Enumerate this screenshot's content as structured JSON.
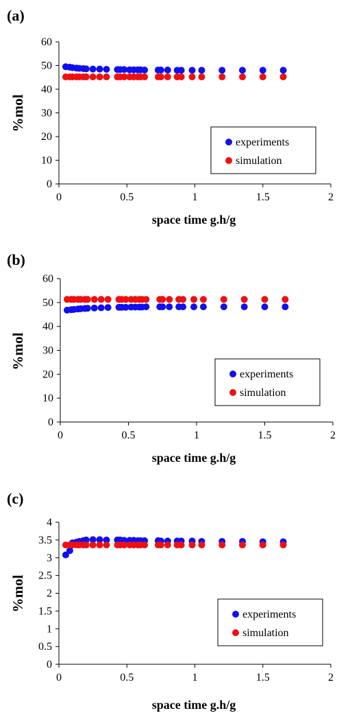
{
  "chart_data": [
    {
      "type": "scatter",
      "panel_label": "(a)",
      "xlabel": "space time g.h/g",
      "ylabel": "%mol",
      "xlim": [
        0,
        2
      ],
      "ylim": [
        0,
        60
      ],
      "xticks": [
        "0",
        "0.5",
        "1",
        "1.5",
        "2"
      ],
      "yticks": [
        "0",
        "10",
        "20",
        "30",
        "40",
        "50",
        "60"
      ],
      "legend_position": "lower-right",
      "series": [
        {
          "name": "experiments",
          "color": "#1010ee",
          "x": [
            0.05,
            0.08,
            0.1,
            0.13,
            0.15,
            0.18,
            0.2,
            0.25,
            0.3,
            0.35,
            0.43,
            0.45,
            0.48,
            0.52,
            0.55,
            0.58,
            0.6,
            0.63,
            0.73,
            0.75,
            0.8,
            0.87,
            0.9,
            0.98,
            1.05,
            1.2,
            1.35,
            1.5,
            1.65
          ],
          "y": [
            49.5,
            49.3,
            49.1,
            48.9,
            48.8,
            48.7,
            48.6,
            48.5,
            48.5,
            48.4,
            48.3,
            48.3,
            48.3,
            48.2,
            48.2,
            48.2,
            48.2,
            48.1,
            48.1,
            48.1,
            48.1,
            48.0,
            48.0,
            48.0,
            48.0,
            48.0,
            48.0,
            48.0,
            48.0
          ]
        },
        {
          "name": "simulation",
          "color": "#ee1010",
          "x": [
            0.05,
            0.08,
            0.1,
            0.13,
            0.15,
            0.18,
            0.2,
            0.25,
            0.3,
            0.35,
            0.43,
            0.45,
            0.48,
            0.52,
            0.55,
            0.58,
            0.6,
            0.63,
            0.73,
            0.75,
            0.8,
            0.87,
            0.9,
            0.98,
            1.05,
            1.2,
            1.35,
            1.5,
            1.65
          ],
          "y": [
            45.2,
            45.2,
            45.2,
            45.2,
            45.2,
            45.2,
            45.2,
            45.2,
            45.2,
            45.2,
            45.2,
            45.2,
            45.2,
            45.2,
            45.2,
            45.2,
            45.2,
            45.2,
            45.2,
            45.2,
            45.2,
            45.2,
            45.2,
            45.2,
            45.2,
            45.2,
            45.2,
            45.2,
            45.2
          ]
        }
      ]
    },
    {
      "type": "scatter",
      "panel_label": "(b)",
      "xlabel": "space time g.h/g",
      "ylabel": "%mol",
      "xlim": [
        0,
        2
      ],
      "ylim": [
        0,
        60
      ],
      "xticks": [
        "0",
        "0.5",
        "1",
        "1.5",
        "2"
      ],
      "yticks": [
        "0",
        "10",
        "20",
        "30",
        "40",
        "50",
        "60"
      ],
      "legend_position": "lower-right",
      "series": [
        {
          "name": "experiments",
          "color": "#1010ee",
          "x": [
            0.05,
            0.08,
            0.1,
            0.13,
            0.15,
            0.18,
            0.2,
            0.25,
            0.3,
            0.35,
            0.43,
            0.45,
            0.48,
            0.52,
            0.55,
            0.58,
            0.6,
            0.63,
            0.73,
            0.75,
            0.8,
            0.87,
            0.9,
            0.98,
            1.05,
            1.2,
            1.35,
            1.5,
            1.65
          ],
          "y": [
            46.8,
            47.0,
            47.1,
            47.3,
            47.4,
            47.5,
            47.6,
            47.7,
            47.8,
            47.9,
            48.0,
            48.0,
            48.0,
            48.1,
            48.1,
            48.1,
            48.1,
            48.2,
            48.2,
            48.2,
            48.2,
            48.2,
            48.2,
            48.2,
            48.2,
            48.2,
            48.2,
            48.2,
            48.2
          ]
        },
        {
          "name": "simulation",
          "color": "#ee1010",
          "x": [
            0.05,
            0.08,
            0.1,
            0.13,
            0.15,
            0.18,
            0.2,
            0.25,
            0.3,
            0.35,
            0.43,
            0.45,
            0.48,
            0.52,
            0.55,
            0.58,
            0.6,
            0.63,
            0.73,
            0.75,
            0.8,
            0.87,
            0.9,
            0.98,
            1.05,
            1.2,
            1.35,
            1.5,
            1.65
          ],
          "y": [
            51.3,
            51.3,
            51.3,
            51.3,
            51.3,
            51.3,
            51.3,
            51.3,
            51.3,
            51.3,
            51.3,
            51.3,
            51.3,
            51.3,
            51.3,
            51.3,
            51.3,
            51.3,
            51.3,
            51.3,
            51.3,
            51.3,
            51.3,
            51.3,
            51.3,
            51.3,
            51.3,
            51.3,
            51.3
          ]
        }
      ]
    },
    {
      "type": "scatter",
      "panel_label": "(c)",
      "xlabel": "space time g.h/g",
      "ylabel": "%mol",
      "xlim": [
        0,
        2
      ],
      "ylim": [
        0,
        4
      ],
      "xticks": [
        "0",
        "0.5",
        "1",
        "1.5",
        "2"
      ],
      "yticks": [
        "0",
        "0.5",
        "1",
        "1.5",
        "2",
        "2.5",
        "3",
        "3.5",
        "4"
      ],
      "legend_position": "lower-right",
      "series": [
        {
          "name": "experiments",
          "color": "#1010ee",
          "x": [
            0.05,
            0.08,
            0.1,
            0.13,
            0.15,
            0.18,
            0.2,
            0.25,
            0.3,
            0.35,
            0.43,
            0.45,
            0.48,
            0.52,
            0.55,
            0.58,
            0.6,
            0.63,
            0.73,
            0.75,
            0.8,
            0.87,
            0.9,
            0.98,
            1.05,
            1.2,
            1.35,
            1.5,
            1.65
          ],
          "y": [
            3.08,
            3.2,
            3.42,
            3.44,
            3.46,
            3.48,
            3.5,
            3.51,
            3.51,
            3.5,
            3.5,
            3.5,
            3.49,
            3.49,
            3.49,
            3.48,
            3.48,
            3.48,
            3.48,
            3.47,
            3.47,
            3.47,
            3.47,
            3.47,
            3.46,
            3.46,
            3.46,
            3.45,
            3.45
          ]
        },
        {
          "name": "simulation",
          "color": "#ee1010",
          "x": [
            0.05,
            0.08,
            0.1,
            0.13,
            0.15,
            0.18,
            0.2,
            0.25,
            0.3,
            0.35,
            0.43,
            0.45,
            0.48,
            0.52,
            0.55,
            0.58,
            0.6,
            0.63,
            0.73,
            0.75,
            0.8,
            0.87,
            0.9,
            0.98,
            1.05,
            1.2,
            1.35,
            1.5,
            1.65
          ],
          "y": [
            3.36,
            3.36,
            3.36,
            3.36,
            3.36,
            3.36,
            3.36,
            3.36,
            3.36,
            3.36,
            3.36,
            3.36,
            3.36,
            3.36,
            3.36,
            3.36,
            3.36,
            3.36,
            3.36,
            3.36,
            3.36,
            3.36,
            3.36,
            3.36,
            3.36,
            3.36,
            3.36,
            3.36,
            3.36
          ]
        }
      ]
    }
  ]
}
